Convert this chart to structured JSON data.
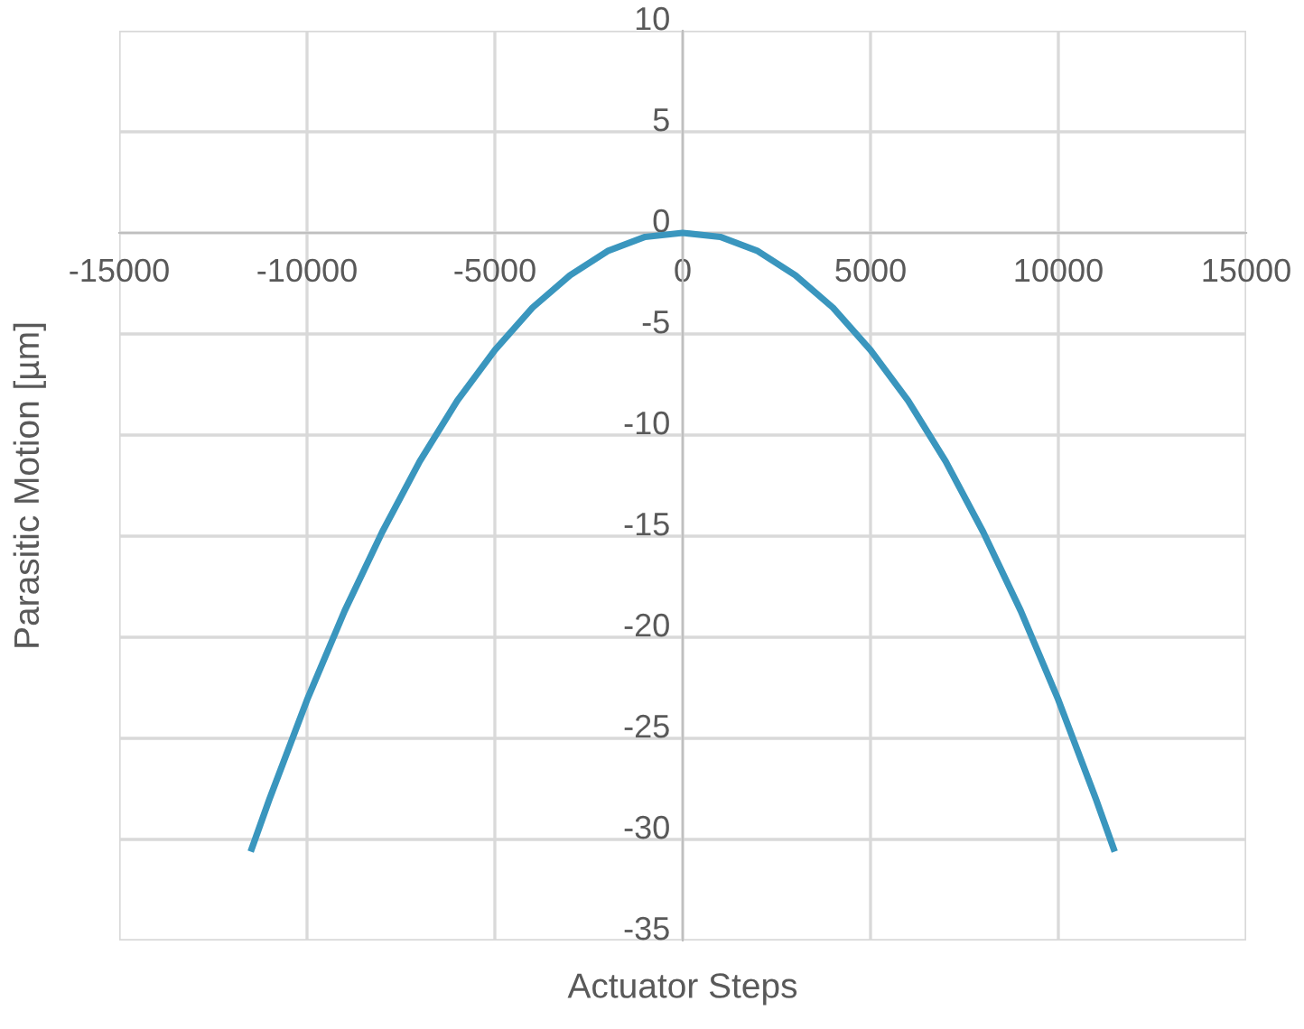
{
  "chart_data": {
    "type": "line",
    "xlabel": "Actuator Steps",
    "ylabel": "Parasitic Motion [µm]",
    "series": [
      {
        "color": "#3a96be",
        "x": [
          -11500,
          -11000,
          -10000,
          -9000,
          -8000,
          -7000,
          -6000,
          -5000,
          -4000,
          -3000,
          -2000,
          -1000,
          0,
          1000,
          2000,
          3000,
          4000,
          5000,
          6000,
          7000,
          8000,
          9000,
          10000,
          11000,
          11500
        ],
        "values": [
          -30.6,
          -28.0,
          -23.1,
          -18.7,
          -14.8,
          -11.3,
          -8.3,
          -5.8,
          -3.7,
          -2.1,
          -0.9,
          -0.2,
          0,
          -0.2,
          -0.9,
          -2.1,
          -3.7,
          -5.8,
          -8.3,
          -11.3,
          -14.8,
          -18.7,
          -23.1,
          -28.0,
          -30.6
        ]
      }
    ],
    "xlim": [
      -15000,
      15000
    ],
    "xticks": [
      -15000,
      -10000,
      -5000,
      0,
      5000,
      10000,
      15000
    ],
    "ylim": [
      -35,
      10
    ],
    "yticks": [
      -35,
      -30,
      -25,
      -20,
      -15,
      -10,
      -5,
      0,
      5,
      10
    ],
    "grid": true,
    "marker": "none",
    "line_style": "solid",
    "legend": false
  }
}
